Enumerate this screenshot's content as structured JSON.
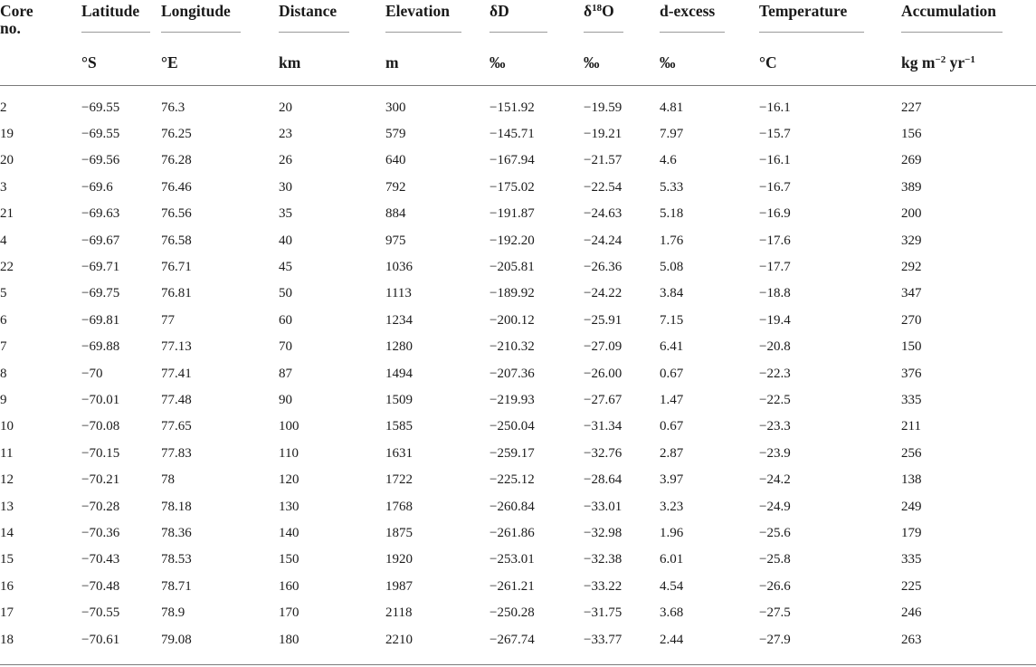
{
  "table": {
    "columns": [
      {
        "key": "core",
        "name": "Core no.",
        "name_lines": [
          "Core",
          "no."
        ],
        "unit": "",
        "rule": false
      },
      {
        "key": "lat",
        "name": "Latitude",
        "unit": "°S",
        "rule": true
      },
      {
        "key": "lon",
        "name": "Longitude",
        "unit": "°E",
        "rule": true
      },
      {
        "key": "dist",
        "name": "Distance",
        "unit": "km",
        "rule": true
      },
      {
        "key": "elev",
        "name": "Elevation",
        "unit": "m",
        "rule": true
      },
      {
        "key": "dD",
        "name": "δD",
        "unit": "‰",
        "rule": true
      },
      {
        "key": "d18O",
        "name": "δ18O",
        "name_parts": [
          "δ",
          "18",
          "O"
        ],
        "unit": "‰",
        "rule": true
      },
      {
        "key": "dex",
        "name": "d-excess",
        "unit": "‰",
        "rule": true
      },
      {
        "key": "temp",
        "name": "Temperature",
        "unit": "°C",
        "rule": true
      },
      {
        "key": "acc",
        "name": "Accumulation",
        "unit": "kg m−2 yr−1",
        "unit_parts": [
          "kg m",
          "−2",
          " yr",
          "−1"
        ],
        "rule": true
      }
    ],
    "rows": [
      [
        "2",
        "−69.55",
        "76.3",
        "20",
        "300",
        "−151.92",
        "−19.59",
        "4.81",
        "−16.1",
        "227"
      ],
      [
        "19",
        "−69.55",
        "76.25",
        "23",
        "579",
        "−145.71",
        "−19.21",
        "7.97",
        "−15.7",
        "156"
      ],
      [
        "20",
        "−69.56",
        "76.28",
        "26",
        "640",
        "−167.94",
        "−21.57",
        "4.6",
        "−16.1",
        "269"
      ],
      [
        "3",
        "−69.6",
        "76.46",
        "30",
        "792",
        "−175.02",
        "−22.54",
        "5.33",
        "−16.7",
        "389"
      ],
      [
        "21",
        "−69.63",
        "76.56",
        "35",
        "884",
        "−191.87",
        "−24.63",
        "5.18",
        "−16.9",
        "200"
      ],
      [
        "4",
        "−69.67",
        "76.58",
        "40",
        "975",
        "−192.20",
        "−24.24",
        "1.76",
        "−17.6",
        "329"
      ],
      [
        "22",
        "−69.71",
        "76.71",
        "45",
        "1036",
        "−205.81",
        "−26.36",
        "5.08",
        "−17.7",
        "292"
      ],
      [
        "5",
        "−69.75",
        "76.81",
        "50",
        "1113",
        "−189.92",
        "−24.22",
        "3.84",
        "−18.8",
        "347"
      ],
      [
        "6",
        "−69.81",
        "77",
        "60",
        "1234",
        "−200.12",
        "−25.91",
        "7.15",
        "−19.4",
        "270"
      ],
      [
        "7",
        "−69.88",
        "77.13",
        "70",
        "1280",
        "−210.32",
        "−27.09",
        "6.41",
        "−20.8",
        "150"
      ],
      [
        "8",
        "−70",
        "77.41",
        "87",
        "1494",
        "−207.36",
        "−26.00",
        "0.67",
        "−22.3",
        "376"
      ],
      [
        "9",
        "−70.01",
        "77.48",
        "90",
        "1509",
        "−219.93",
        "−27.67",
        "1.47",
        "−22.5",
        "335"
      ],
      [
        "10",
        "−70.08",
        "77.65",
        "100",
        "1585",
        "−250.04",
        "−31.34",
        "0.67",
        "−23.3",
        "211"
      ],
      [
        "11",
        "−70.15",
        "77.83",
        "110",
        "1631",
        "−259.17",
        "−32.76",
        "2.87",
        "−23.9",
        "256"
      ],
      [
        "12",
        "−70.21",
        "78",
        "120",
        "1722",
        "−225.12",
        "−28.64",
        "3.97",
        "−24.2",
        "138"
      ],
      [
        "13",
        "−70.28",
        "78.18",
        "130",
        "1768",
        "−260.84",
        "−33.01",
        "3.23",
        "−24.9",
        "249"
      ],
      [
        "14",
        "−70.36",
        "78.36",
        "140",
        "1875",
        "−261.86",
        "−32.98",
        "1.96",
        "−25.6",
        "179"
      ],
      [
        "15",
        "−70.43",
        "78.53",
        "150",
        "1920",
        "−253.01",
        "−32.38",
        "6.01",
        "−25.8",
        "335"
      ],
      [
        "16",
        "−70.48",
        "78.71",
        "160",
        "1987",
        "−261.21",
        "−33.22",
        "4.54",
        "−26.6",
        "225"
      ],
      [
        "17",
        "−70.55",
        "78.9",
        "170",
        "2118",
        "−250.28",
        "−31.75",
        "3.68",
        "−27.5",
        "246"
      ],
      [
        "18",
        "−70.61",
        "79.08",
        "180",
        "2210",
        "−267.74",
        "−33.77",
        "2.44",
        "−27.9",
        "263"
      ]
    ]
  }
}
